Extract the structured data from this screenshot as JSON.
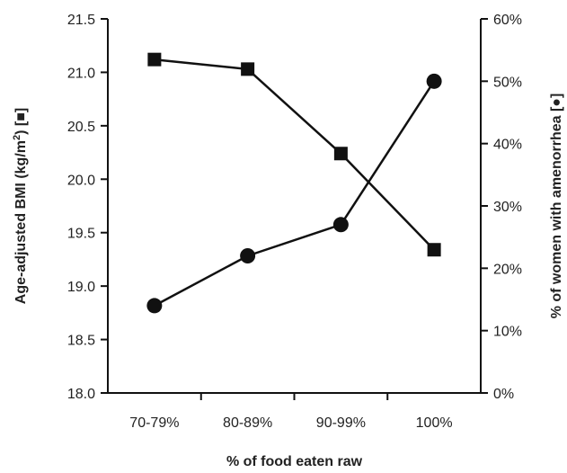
{
  "chart_data": {
    "type": "line",
    "categories": [
      "70-79%",
      "80-89%",
      "90-99%",
      "100%"
    ],
    "xlabel": "% of food eaten raw",
    "ylabel_left": {
      "prefix": "Age-adjusted BMI (kg/m",
      "sup": "2",
      "suffix": ") [",
      "marker": "■",
      "close": "]"
    },
    "ylabel_right": {
      "prefix": "% of women with amenorrhea [",
      "marker": "●",
      "close": "]"
    },
    "left_axis": {
      "ylim": [
        18.0,
        21.5
      ],
      "ticks": [
        "18.0",
        "18.5",
        "19.0",
        "19.5",
        "20.0",
        "20.5",
        "21.0",
        "21.5"
      ]
    },
    "right_axis": {
      "ylim": [
        0,
        60
      ],
      "ticks": [
        "0%",
        "10%",
        "20%",
        "30%",
        "40%",
        "50%",
        "60%"
      ]
    },
    "series": [
      {
        "axis": "left",
        "marker": "square",
        "values": [
          21.12,
          21.03,
          20.24,
          19.34
        ]
      },
      {
        "axis": "right",
        "marker": "circle",
        "values": [
          14,
          22,
          27,
          50
        ]
      }
    ],
    "grid": false,
    "legend": "none"
  }
}
